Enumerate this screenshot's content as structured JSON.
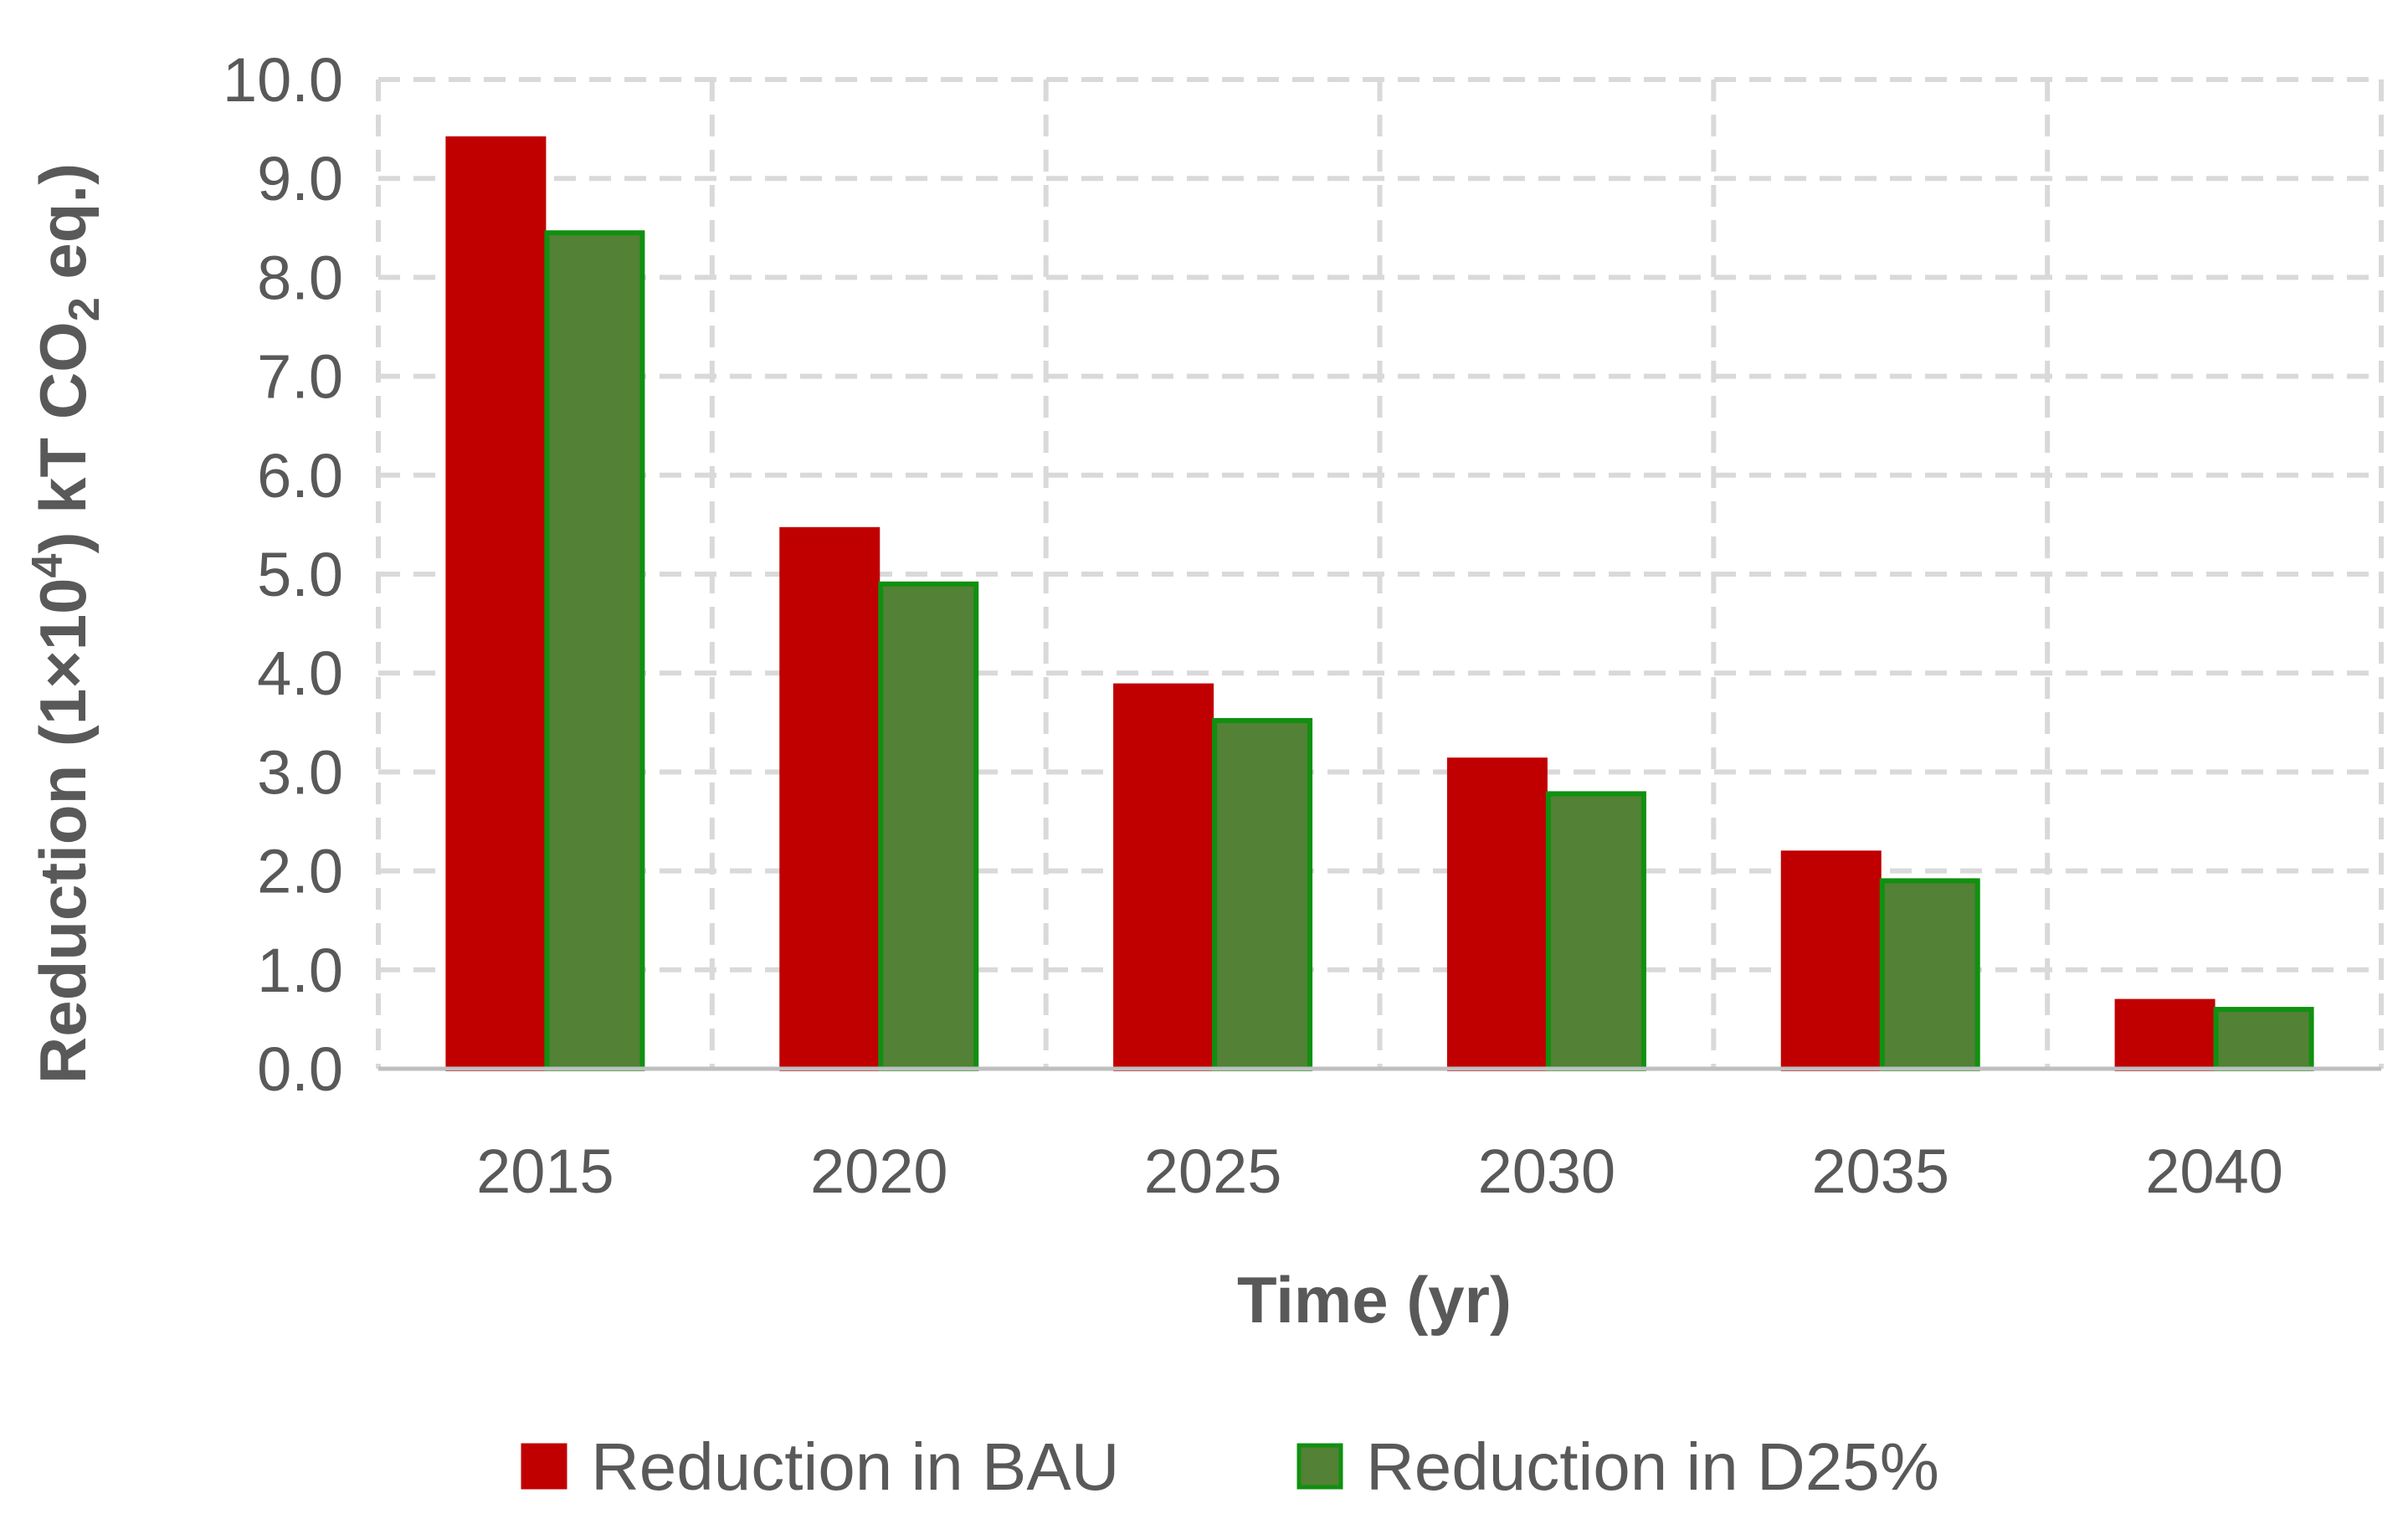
{
  "chart_data": {
    "type": "bar",
    "categories": [
      "2015",
      "2020",
      "2025",
      "2030",
      "2035",
      "2040"
    ],
    "series": [
      {
        "name": "Reduction in BAU",
        "values": [
          9.4,
          5.45,
          3.87,
          3.12,
          2.18,
          0.68
        ],
        "fill": "#c00000",
        "stroke": "#c00000"
      },
      {
        "name": "Reduction in D25%",
        "values": [
          8.45,
          4.9,
          3.52,
          2.78,
          1.9,
          0.6
        ],
        "fill": "#538135",
        "stroke": "#109010"
      }
    ],
    "ylim": [
      0,
      10
    ],
    "yticks": [
      "0.0",
      "1.0",
      "2.0",
      "3.0",
      "4.0",
      "5.0",
      "6.0",
      "7.0",
      "8.0",
      "9.0",
      "10.0"
    ],
    "xlabel": "Time (yr)",
    "ylabel": {
      "text_before_exp": "Reduction (1×10",
      "exponent": "4",
      "text_after_exp": ") kT CO",
      "subscript": "2",
      "text_end": " eq.)"
    },
    "grid": true,
    "legend": "bottom",
    "colors": {
      "axis": "#bfbfbf",
      "grid": "#d9d9d9",
      "text": "#595959"
    }
  }
}
